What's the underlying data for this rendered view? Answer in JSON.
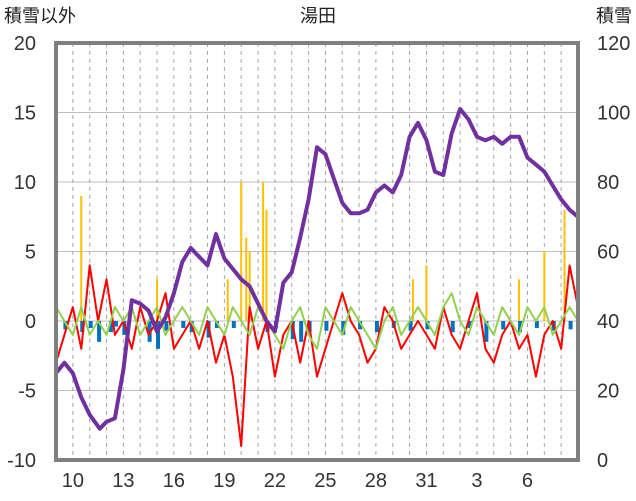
{
  "chart_data": {
    "type": "line",
    "title": "湯田",
    "left_axis_label": "積雪以外",
    "right_axis_label": "積雪",
    "left_ylim": [
      -10,
      20
    ],
    "left_ticks": [
      "20",
      "15",
      "10",
      "5",
      "0",
      "-5",
      "-10"
    ],
    "right_ylim": [
      0,
      120
    ],
    "right_ticks": [
      "120",
      "100",
      "80",
      "60",
      "40",
      "20",
      "0"
    ],
    "x_ticks": [
      "10",
      "13",
      "16",
      "19",
      "22",
      "25",
      "28",
      "31",
      "3",
      "6"
    ],
    "grid": true,
    "colors": {
      "snow_depth": "#7030a0",
      "temperature": "#ff0000",
      "wind": "#92d050",
      "precipitation": "#ffc000",
      "sunshine": "#0070c0",
      "frame": "#7f7f7f"
    },
    "series": [
      {
        "key": "snow_depth",
        "axis": "right",
        "x": [
          0,
          0.5,
          1.0,
          1.5,
          2.0,
          2.6,
          3.0,
          3.5,
          4.0,
          4.5,
          5.0,
          5.5,
          6.0,
          6.5,
          7.0,
          7.5,
          8.0,
          8.6,
          9.0,
          9.5,
          10.0,
          10.5,
          11.0,
          11.5,
          12.0,
          12.5,
          13.0,
          13.5,
          14.0,
          14.5,
          15.0,
          15.5,
          16.0,
          16.5,
          17.0,
          17.5,
          18.0,
          18.5,
          19.0,
          19.5,
          20.0,
          20.5,
          21.0,
          21.5,
          22.0,
          22.5,
          23.0,
          23.5,
          24.0,
          24.5,
          25.0,
          25.5,
          26.0,
          26.5,
          27.0,
          27.5,
          28.0,
          28.5,
          29.0,
          29.5,
          30.0,
          30.5,
          31.0
        ],
        "y": [
          25,
          28,
          25,
          18,
          13,
          9,
          11,
          12,
          26,
          46,
          45,
          43,
          37,
          41,
          48,
          57,
          61,
          58,
          56,
          65,
          58,
          55,
          52,
          50,
          45,
          40,
          37,
          51,
          54,
          64,
          75,
          90,
          88,
          81,
          74,
          71,
          71,
          72,
          77,
          79,
          77,
          82,
          93,
          97,
          92,
          83,
          82,
          94,
          101,
          98,
          93,
          92,
          93,
          91,
          93,
          93,
          87,
          85,
          83,
          79,
          75,
          72,
          70
        ]
      },
      {
        "key": "temperature",
        "axis": "left",
        "x": [
          0,
          0.5,
          1.0,
          1.5,
          2.0,
          2.5,
          3.0,
          3.5,
          4.0,
          4.5,
          5.0,
          5.5,
          6.0,
          6.5,
          7.0,
          7.5,
          8.0,
          8.5,
          9.0,
          9.5,
          10.0,
          10.5,
          11.0,
          11.5,
          12.0,
          12.5,
          13.0,
          13.5,
          14.0,
          14.5,
          15.0,
          15.5,
          16.0,
          16.5,
          17.0,
          17.5,
          18.0,
          18.5,
          19.0,
          19.5,
          20.0,
          20.5,
          21.0,
          21.5,
          22.0,
          22.5,
          23.0,
          23.5,
          24.0,
          24.5,
          25.0,
          25.5,
          26.0,
          26.5,
          27.0,
          27.5,
          28.0,
          28.5,
          29.0,
          29.5,
          30.0,
          30.5,
          31.0
        ],
        "y": [
          -3,
          -1,
          1,
          -2,
          4,
          0,
          3,
          -1,
          0,
          -2,
          1,
          -1,
          0,
          2,
          -2,
          -1,
          0,
          -2,
          0,
          -3,
          -1,
          -4,
          -9,
          1,
          -2,
          0,
          -4,
          -1,
          0,
          -3,
          0,
          -4,
          -2,
          0,
          2,
          0,
          -1,
          -3,
          -2,
          1,
          0,
          -2,
          -1,
          0,
          -1,
          -2,
          1,
          -1,
          -2,
          0,
          2,
          -2,
          -3,
          -1,
          0,
          -2,
          -1,
          -4,
          -1,
          0,
          -2,
          4,
          1
        ]
      },
      {
        "key": "wind",
        "axis": "left",
        "x": [
          0,
          0.5,
          1.0,
          1.5,
          2.0,
          2.5,
          3.0,
          3.5,
          4.0,
          4.5,
          5.0,
          5.5,
          6.0,
          6.5,
          7.0,
          7.5,
          8.0,
          8.5,
          9.0,
          9.5,
          10.0,
          10.5,
          11.0,
          11.5,
          12.0,
          12.5,
          13.0,
          13.5,
          14.0,
          14.5,
          15.0,
          15.5,
          16.0,
          16.5,
          17.0,
          17.5,
          18.0,
          18.5,
          19.0,
          19.5,
          20.0,
          20.5,
          21.0,
          21.5,
          22.0,
          22.5,
          23.0,
          23.5,
          24.0,
          24.5,
          25.0,
          25.5,
          26.0,
          26.5,
          27.0,
          27.5,
          28.0,
          28.5,
          29.0,
          29.5,
          30.0,
          30.5,
          31.0
        ],
        "y": [
          1,
          0,
          -1,
          1,
          -1,
          0,
          -1,
          1,
          0,
          1,
          -1,
          0,
          1,
          -1,
          0,
          1,
          0,
          -1,
          1,
          0,
          -1,
          1,
          0,
          -1,
          1,
          0,
          -1,
          -2,
          0,
          1,
          -1,
          -2,
          1,
          0,
          -1,
          1,
          0,
          -1,
          -2,
          0,
          1,
          -1,
          0,
          1,
          0,
          -1,
          1,
          2,
          0,
          -1,
          1,
          0,
          -1,
          1,
          0,
          -1,
          1,
          0,
          1,
          -1,
          0,
          1,
          0
        ]
      },
      {
        "key": "precipitation",
        "axis": "left",
        "x": [
          1.5,
          6.0,
          10.2,
          11.0,
          11.3,
          11.5,
          12.3,
          12.5,
          21.2,
          22.0,
          27.5,
          29.0,
          30.2
        ],
        "y": [
          9,
          3,
          3,
          10,
          6,
          5,
          10,
          8,
          3,
          4,
          3,
          5,
          8
        ]
      },
      {
        "key": "sunshine",
        "axis": "left",
        "x": [
          0.5,
          1.5,
          2.0,
          2.5,
          3.2,
          3.5,
          4.0,
          5.5,
          6.0,
          6.5,
          7.5,
          8.0,
          9.0,
          9.5,
          10.5,
          12.5,
          13.0,
          14.0,
          14.5,
          15.0,
          16.0,
          17.0,
          18.0,
          19.0,
          20.0,
          21.0,
          22.0,
          23.5,
          24.5,
          25.5,
          26.5,
          27.5,
          28.5,
          29.5,
          30.5
        ],
        "y": [
          -0.6,
          -0.8,
          -0.5,
          -1.5,
          -0.8,
          -0.4,
          -1.0,
          -1.5,
          -2.0,
          -0.7,
          -0.5,
          -0.8,
          -1.2,
          -0.5,
          -0.5,
          -0.8,
          -0.5,
          -1.3,
          -1.5,
          -0.8,
          -0.7,
          -1.0,
          -0.6,
          -0.8,
          -0.5,
          -0.7,
          -0.6,
          -0.8,
          -0.5,
          -1.5,
          -0.6,
          -0.8,
          -0.5,
          -0.7,
          -0.6
        ]
      }
    ]
  }
}
